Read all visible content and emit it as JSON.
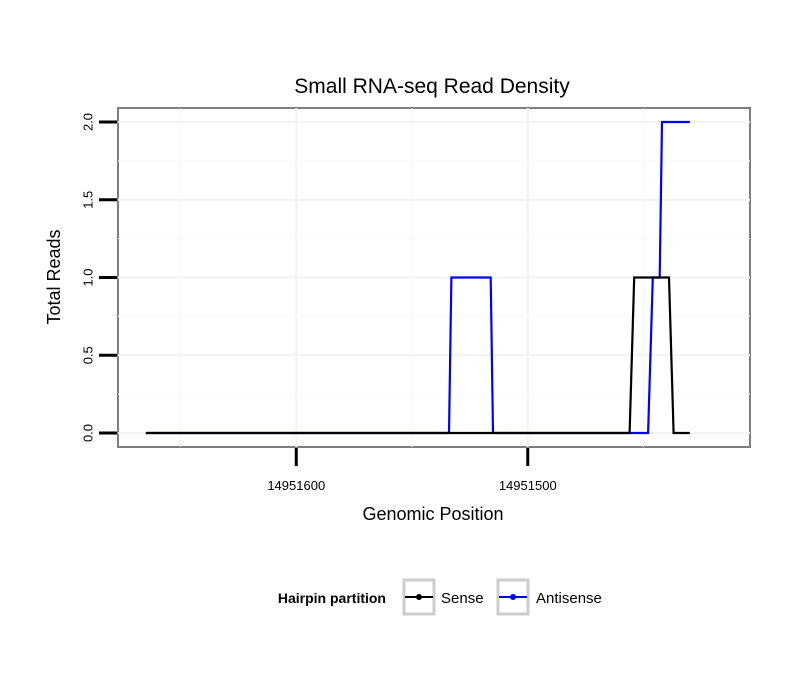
{
  "chart_data": {
    "type": "line",
    "title": "Small RNA-seq Read Density",
    "xlabel": "Genomic Position",
    "ylabel": "Total Reads",
    "x_reversed": true,
    "xlim": [
      14951677,
      14951404
    ],
    "ylim": [
      -0.09,
      2.09
    ],
    "x_ticks": [
      {
        "value": 14951600,
        "label": "14951600"
      },
      {
        "value": 14951500,
        "label": "14951500"
      }
    ],
    "y_ticks": [
      {
        "value": 0.0,
        "label": "0.0"
      },
      {
        "value": 0.5,
        "label": "0.5"
      },
      {
        "value": 1.0,
        "label": "1.0"
      },
      {
        "value": 1.5,
        "label": "1.5"
      },
      {
        "value": 2.0,
        "label": "2.0"
      }
    ],
    "grid": true,
    "legend": {
      "title": "Hairpin partition",
      "position": "bottom"
    },
    "series": [
      {
        "name": "Sense",
        "color": "#000000",
        "points": [
          [
            14951665,
            0
          ],
          [
            14951456,
            0
          ],
          [
            14951454,
            1
          ],
          [
            14951439,
            1
          ],
          [
            14951437,
            0
          ],
          [
            14951430,
            0
          ]
        ]
      },
      {
        "name": "Antisense",
        "color": "#0000ff",
        "points": [
          [
            14951665,
            0
          ],
          [
            14951534,
            0
          ],
          [
            14951533,
            1
          ],
          [
            14951516,
            1
          ],
          [
            14951515,
            0
          ],
          [
            14951448,
            0
          ],
          [
            14951446,
            1
          ],
          [
            14951443,
            1
          ],
          [
            14951442,
            2
          ],
          [
            14951430,
            2
          ]
        ]
      }
    ]
  }
}
